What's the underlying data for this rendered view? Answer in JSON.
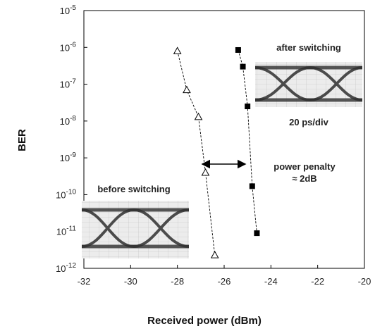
{
  "chart_data": {
    "type": "scatter",
    "xlabel": "Received power (dBm)",
    "ylabel": "BER",
    "xlim": [
      -32,
      -20
    ],
    "ylim_exponent": [
      -12,
      -5
    ],
    "y_scale": "log",
    "x_ticks": [
      "-32",
      "-30",
      "-28",
      "-26",
      "-24",
      "-22",
      "-20"
    ],
    "y_tick_exponents": [
      "-5",
      "-6",
      "-7",
      "-8",
      "-9",
      "-10",
      "-11",
      "-12"
    ],
    "y_tick_base": "10",
    "grid": false,
    "series": [
      {
        "marker": "open-triangle",
        "points": [
          {
            "x": -28.0,
            "y": 8e-07
          },
          {
            "x": -27.6,
            "y": 7e-08
          },
          {
            "x": -27.1,
            "y": 1.3e-08
          },
          {
            "x": -26.8,
            "y": 4e-10
          },
          {
            "x": -26.4,
            "y": 2.3e-12
          }
        ]
      },
      {
        "marker": "filled-square",
        "points": [
          {
            "x": -25.4,
            "y": 8.5e-07
          },
          {
            "x": -25.2,
            "y": 3e-07
          },
          {
            "x": -25.0,
            "y": 2.5e-08
          },
          {
            "x": -24.8,
            "y": 1.7e-10
          },
          {
            "x": -24.6,
            "y": 9e-12
          }
        ]
      }
    ],
    "annotations": {
      "after_switching": "after switching",
      "eye_scale": "20 ps/div",
      "power_penalty_line1": "power penalty",
      "power_penalty_line2": "≈ 2dB",
      "before_switching": "before switching"
    }
  }
}
